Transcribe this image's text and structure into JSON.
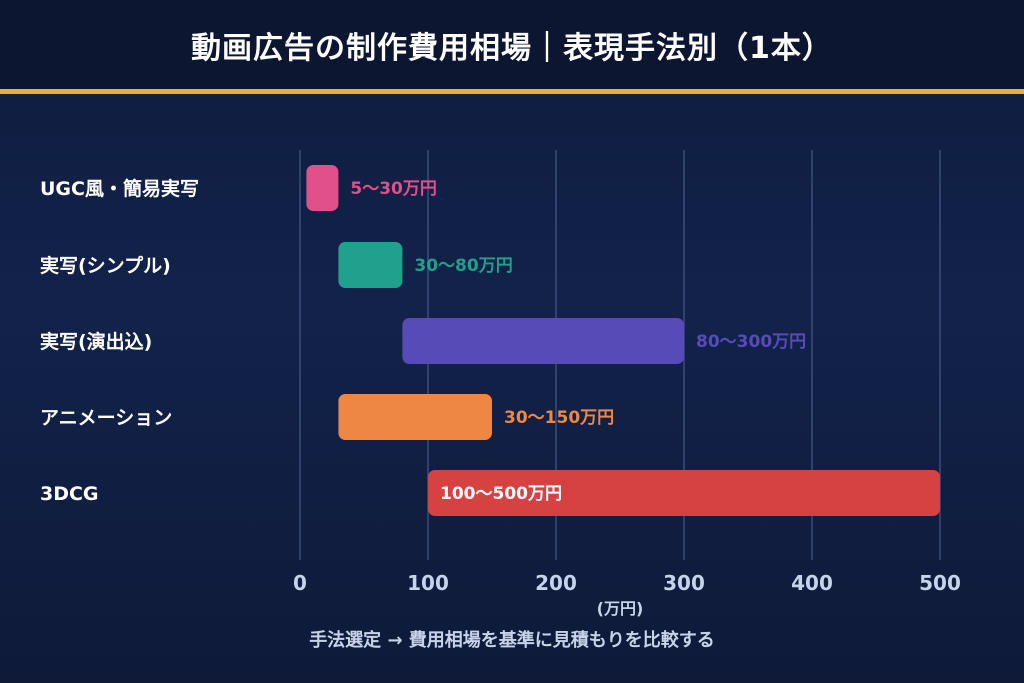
{
  "header": {
    "title": "動画広告の制作費用相場｜表現手法別（1本）"
  },
  "footer": {
    "note": "手法選定 → 費用相場を基準に見積もりを比較する"
  },
  "chart_data": {
    "type": "bar",
    "orientation": "horizontal",
    "subtype": "floating-range",
    "title": "動画広告の制作費用相場｜表現手法別（1本）",
    "xlabel": "(万円)",
    "ylabel": "",
    "xlim": [
      0,
      500
    ],
    "xticks": [
      0,
      100,
      200,
      300,
      400,
      500
    ],
    "grid": true,
    "categories": [
      "UGC風・簡易実写",
      "実写(シンプル)",
      "実写(演出込)",
      "アニメーション",
      "3DCG"
    ],
    "ranges": [
      [
        5,
        30
      ],
      [
        30,
        80
      ],
      [
        80,
        300
      ],
      [
        30,
        150
      ],
      [
        100,
        500
      ]
    ],
    "labels": [
      "5〜30万円",
      "30〜80万円",
      "80〜300万円",
      "30〜150万円",
      "100〜500万円"
    ],
    "label_inside": [
      false,
      false,
      false,
      false,
      true
    ],
    "colors": [
      "#e0508a",
      "#21a08d",
      "#574bb8",
      "#ee8744",
      "#d64242"
    ],
    "annotation": "手法選定 → 費用相場を基準に見積もりを比較する"
  }
}
